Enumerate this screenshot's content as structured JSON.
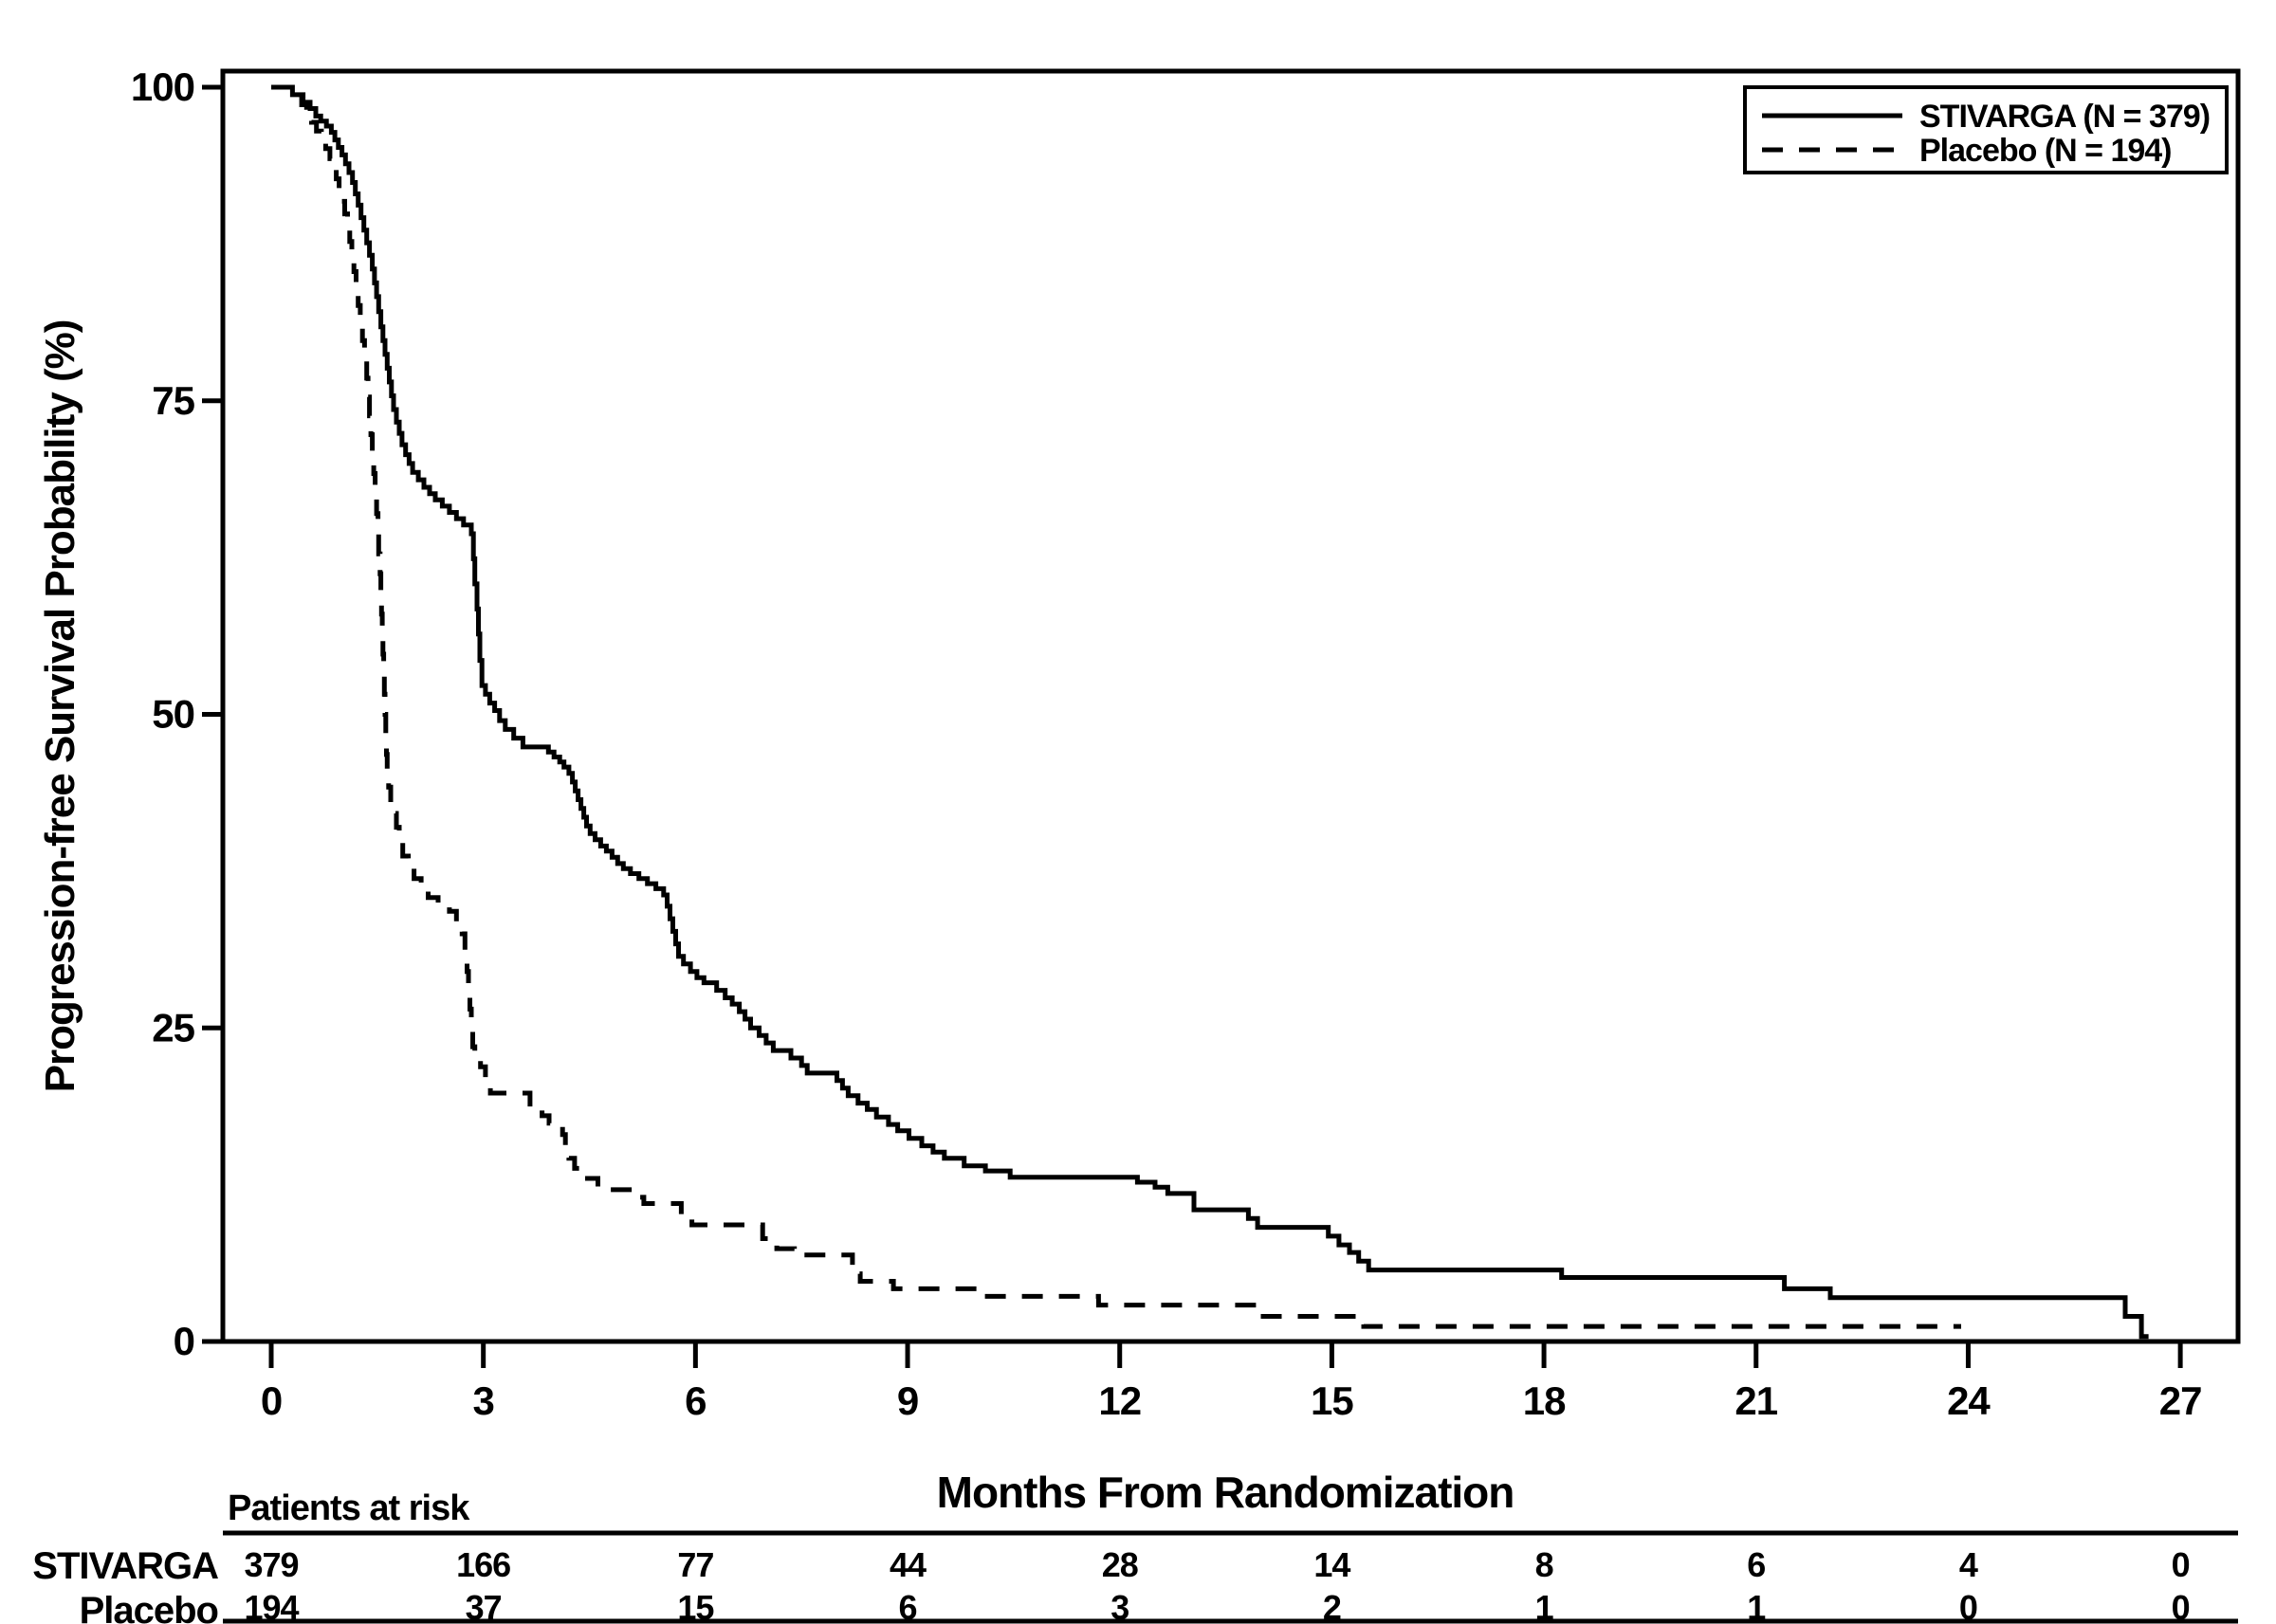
{
  "figure": {
    "background_color": "#ffffff",
    "ink_color": "#000000"
  },
  "chart_data": {
    "type": "line",
    "subtype": "kaplan-meier-step",
    "title": "",
    "xlabel": "Months From Randomization",
    "ylabel": "Progression-free Survival Probability (%)",
    "xlim": [
      0,
      27
    ],
    "ylim": [
      0,
      100
    ],
    "x_ticks": [
      0,
      3,
      6,
      9,
      12,
      15,
      18,
      21,
      24,
      27
    ],
    "y_ticks": [
      0,
      25,
      50,
      75,
      100
    ],
    "grid": false,
    "legend_position": "top-right",
    "series": [
      {
        "name": "STIVARGA (N = 379)",
        "line_style": "solid",
        "end_month": 26.55,
        "points": [
          [
            0,
            100
          ],
          [
            0.3,
            99.4
          ],
          [
            0.45,
            98.8
          ],
          [
            0.55,
            98.3
          ],
          [
            0.63,
            97.7
          ],
          [
            0.7,
            97.3
          ],
          [
            0.78,
            96.9
          ],
          [
            0.85,
            96.4
          ],
          [
            0.9,
            95.8
          ],
          [
            0.95,
            95.2
          ],
          [
            1.0,
            94.6
          ],
          [
            1.05,
            93.9
          ],
          [
            1.1,
            93.2
          ],
          [
            1.15,
            92.4
          ],
          [
            1.19,
            91.5
          ],
          [
            1.23,
            90.6
          ],
          [
            1.27,
            89.6
          ],
          [
            1.31,
            88.6
          ],
          [
            1.35,
            87.6
          ],
          [
            1.39,
            86.6
          ],
          [
            1.43,
            85.5
          ],
          [
            1.46,
            84.4
          ],
          [
            1.49,
            83.3
          ],
          [
            1.52,
            82.1
          ],
          [
            1.55,
            80.9
          ],
          [
            1.58,
            79.8
          ],
          [
            1.61,
            78.7
          ],
          [
            1.64,
            77.6
          ],
          [
            1.67,
            76.5
          ],
          [
            1.7,
            75.4
          ],
          [
            1.73,
            74.3
          ],
          [
            1.77,
            73.3
          ],
          [
            1.81,
            72.4
          ],
          [
            1.85,
            71.5
          ],
          [
            1.9,
            70.7
          ],
          [
            1.95,
            70.0
          ],
          [
            2.0,
            69.3
          ],
          [
            2.08,
            68.7
          ],
          [
            2.16,
            68.1
          ],
          [
            2.24,
            67.6
          ],
          [
            2.32,
            67.1
          ],
          [
            2.42,
            66.6
          ],
          [
            2.52,
            66.1
          ],
          [
            2.62,
            65.6
          ],
          [
            2.72,
            65.1
          ],
          [
            2.83,
            64.4
          ],
          [
            2.86,
            62.4
          ],
          [
            2.88,
            60.4
          ],
          [
            2.91,
            58.4
          ],
          [
            2.93,
            56.4
          ],
          [
            2.95,
            54.3
          ],
          [
            2.98,
            52.3
          ],
          [
            3.03,
            51.6
          ],
          [
            3.09,
            50.9
          ],
          [
            3.16,
            50.3
          ],
          [
            3.23,
            49.5
          ],
          [
            3.31,
            48.8
          ],
          [
            3.43,
            48.1
          ],
          [
            3.56,
            47.4
          ],
          [
            3.92,
            47.0
          ],
          [
            4.0,
            46.6
          ],
          [
            4.08,
            46.2
          ],
          [
            4.14,
            45.8
          ],
          [
            4.21,
            45.3
          ],
          [
            4.26,
            44.6
          ],
          [
            4.3,
            43.9
          ],
          [
            4.34,
            43.2
          ],
          [
            4.38,
            42.5
          ],
          [
            4.42,
            41.8
          ],
          [
            4.46,
            41.1
          ],
          [
            4.51,
            40.5
          ],
          [
            4.58,
            40.0
          ],
          [
            4.66,
            39.5
          ],
          [
            4.74,
            39.1
          ],
          [
            4.82,
            38.6
          ],
          [
            4.9,
            38.1
          ],
          [
            4.98,
            37.7
          ],
          [
            5.08,
            37.3
          ],
          [
            5.2,
            36.9
          ],
          [
            5.32,
            36.5
          ],
          [
            5.44,
            36.1
          ],
          [
            5.55,
            35.6
          ],
          [
            5.6,
            34.7
          ],
          [
            5.64,
            33.7
          ],
          [
            5.68,
            32.7
          ],
          [
            5.72,
            31.7
          ],
          [
            5.76,
            30.7
          ],
          [
            5.83,
            30.1
          ],
          [
            5.93,
            29.5
          ],
          [
            6.02,
            29.0
          ],
          [
            6.12,
            28.6
          ],
          [
            6.3,
            28.0
          ],
          [
            6.42,
            27.4
          ],
          [
            6.52,
            26.9
          ],
          [
            6.62,
            26.3
          ],
          [
            6.7,
            25.7
          ],
          [
            6.78,
            25.0
          ],
          [
            6.9,
            24.4
          ],
          [
            7.0,
            23.8
          ],
          [
            7.1,
            23.2
          ],
          [
            7.35,
            22.6
          ],
          [
            7.5,
            22.0
          ],
          [
            7.58,
            21.4
          ],
          [
            8.0,
            20.8
          ],
          [
            8.08,
            20.2
          ],
          [
            8.16,
            19.6
          ],
          [
            8.3,
            19.0
          ],
          [
            8.43,
            18.5
          ],
          [
            8.56,
            17.9
          ],
          [
            8.73,
            17.3
          ],
          [
            8.86,
            16.8
          ],
          [
            9.02,
            16.2
          ],
          [
            9.2,
            15.6
          ],
          [
            9.36,
            15.1
          ],
          [
            9.52,
            14.6
          ],
          [
            9.8,
            14.0
          ],
          [
            10.1,
            13.6
          ],
          [
            10.45,
            13.1
          ],
          [
            12.25,
            12.7
          ],
          [
            12.5,
            12.3
          ],
          [
            12.68,
            11.8
          ],
          [
            13.05,
            10.5
          ],
          [
            13.82,
            9.8
          ],
          [
            13.95,
            9.1
          ],
          [
            14.95,
            8.4
          ],
          [
            15.1,
            7.7
          ],
          [
            15.25,
            7.1
          ],
          [
            15.38,
            6.4
          ],
          [
            15.52,
            5.7
          ],
          [
            18.25,
            5.1
          ],
          [
            21.4,
            4.2
          ],
          [
            22.05,
            3.5
          ],
          [
            26.22,
            2.0
          ],
          [
            26.45,
            0.4
          ]
        ]
      },
      {
        "name": "Placebo (N = 194)",
        "line_style": "dashed",
        "end_month": 23.9,
        "points": [
          [
            0,
            100
          ],
          [
            0.35,
            99.3
          ],
          [
            0.43,
            98.6
          ],
          [
            0.5,
            98.0
          ],
          [
            0.57,
            97.2
          ],
          [
            0.64,
            96.5
          ],
          [
            0.71,
            95.8
          ],
          [
            0.77,
            95.1
          ],
          [
            0.83,
            94.3
          ],
          [
            0.88,
            93.5
          ],
          [
            0.92,
            92.7
          ],
          [
            0.96,
            91.8
          ],
          [
            1.0,
            90.9
          ],
          [
            1.04,
            89.9
          ],
          [
            1.08,
            88.8
          ],
          [
            1.11,
            87.7
          ],
          [
            1.14,
            86.5
          ],
          [
            1.17,
            85.3
          ],
          [
            1.2,
            84.0
          ],
          [
            1.23,
            82.6
          ],
          [
            1.26,
            81.2
          ],
          [
            1.29,
            79.8
          ],
          [
            1.32,
            78.3
          ],
          [
            1.35,
            76.8
          ],
          [
            1.37,
            75.3
          ],
          [
            1.39,
            73.8
          ],
          [
            1.41,
            72.3
          ],
          [
            1.43,
            70.8
          ],
          [
            1.45,
            69.2
          ],
          [
            1.47,
            67.6
          ],
          [
            1.49,
            66.0
          ],
          [
            1.51,
            64.4
          ],
          [
            1.52,
            62.8
          ],
          [
            1.54,
            61.2
          ],
          [
            1.55,
            59.6
          ],
          [
            1.56,
            58.0
          ],
          [
            1.57,
            56.4
          ],
          [
            1.58,
            54.8
          ],
          [
            1.59,
            53.2
          ],
          [
            1.6,
            51.6
          ],
          [
            1.61,
            50.0
          ],
          [
            1.62,
            48.4
          ],
          [
            1.63,
            46.8
          ],
          [
            1.64,
            45.4
          ],
          [
            1.66,
            44.2
          ],
          [
            1.69,
            43.2
          ],
          [
            1.73,
            42.1
          ],
          [
            1.77,
            41.0
          ],
          [
            1.81,
            39.9
          ],
          [
            1.86,
            38.7
          ],
          [
            1.94,
            37.7
          ],
          [
            2.02,
            36.9
          ],
          [
            2.12,
            36.1
          ],
          [
            2.22,
            35.4
          ],
          [
            2.36,
            34.8
          ],
          [
            2.52,
            34.3
          ],
          [
            2.62,
            33.5
          ],
          [
            2.7,
            32.5
          ],
          [
            2.74,
            31.0
          ],
          [
            2.77,
            29.5
          ],
          [
            2.79,
            28.0
          ],
          [
            2.81,
            26.5
          ],
          [
            2.83,
            25.0
          ],
          [
            2.85,
            23.5
          ],
          [
            2.88,
            22.5
          ],
          [
            2.96,
            21.9
          ],
          [
            3.03,
            20.7
          ],
          [
            3.1,
            19.8
          ],
          [
            3.66,
            18.7
          ],
          [
            3.83,
            18.0
          ],
          [
            3.93,
            17.4
          ],
          [
            4.12,
            16.5
          ],
          [
            4.16,
            15.5
          ],
          [
            4.21,
            14.6
          ],
          [
            4.29,
            13.8
          ],
          [
            4.38,
            13.0
          ],
          [
            4.62,
            12.1
          ],
          [
            5.15,
            11.5
          ],
          [
            5.27,
            11.0
          ],
          [
            5.8,
            10.0
          ],
          [
            5.95,
            9.3
          ],
          [
            6.95,
            8.2
          ],
          [
            7.15,
            7.4
          ],
          [
            7.4,
            6.9
          ],
          [
            8.22,
            5.4
          ],
          [
            8.33,
            4.8
          ],
          [
            8.8,
            4.2
          ],
          [
            10.05,
            3.6
          ],
          [
            11.7,
            2.9
          ],
          [
            13.97,
            2.0
          ],
          [
            15.45,
            1.2
          ]
        ]
      }
    ]
  },
  "legend": {
    "entries": [
      {
        "label": "STIVARGA (N = 379)",
        "style": "solid"
      },
      {
        "label": "Placebo (N = 194)",
        "style": "dashed"
      }
    ]
  },
  "risk_table": {
    "header": "Patients at risk",
    "months": [
      0,
      3,
      6,
      9,
      12,
      15,
      18,
      21,
      24,
      27
    ],
    "rows": [
      {
        "label": "STIVARGA",
        "counts": [
          379,
          166,
          77,
          44,
          28,
          14,
          8,
          6,
          4,
          0
        ]
      },
      {
        "label": "Placebo",
        "counts": [
          194,
          37,
          15,
          6,
          3,
          2,
          1,
          1,
          0,
          0
        ]
      }
    ]
  }
}
